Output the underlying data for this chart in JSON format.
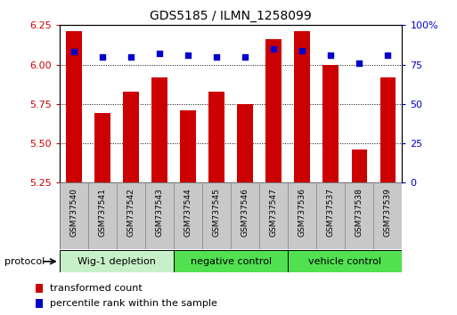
{
  "title": "GDS5185 / ILMN_1258099",
  "samples": [
    "GSM737540",
    "GSM737541",
    "GSM737542",
    "GSM737543",
    "GSM737544",
    "GSM737545",
    "GSM737546",
    "GSM737547",
    "GSM737536",
    "GSM737537",
    "GSM737538",
    "GSM737539"
  ],
  "bar_values": [
    6.21,
    5.69,
    5.83,
    5.92,
    5.71,
    5.83,
    5.75,
    6.16,
    6.21,
    6.0,
    5.46,
    5.92
  ],
  "dot_values": [
    83,
    80,
    80,
    82,
    81,
    80,
    80,
    85,
    84,
    81,
    76,
    81
  ],
  "ylim_left": [
    5.25,
    6.25
  ],
  "ylim_right": [
    0,
    100
  ],
  "yticks_left": [
    5.25,
    5.5,
    5.75,
    6.0,
    6.25
  ],
  "yticks_right": [
    0,
    25,
    50,
    75,
    100
  ],
  "ytick_labels_right": [
    "0",
    "25",
    "50",
    "75",
    "100%"
  ],
  "bar_color": "#cc0000",
  "dot_color": "#0000cc",
  "bar_bottom": 5.25,
  "groups": [
    {
      "label": "Wig-1 depletion",
      "start": 0,
      "end": 3,
      "color": "#c8f0c8"
    },
    {
      "label": "negative control",
      "start": 4,
      "end": 7,
      "color": "#50e050"
    },
    {
      "label": "vehicle control",
      "start": 8,
      "end": 11,
      "color": "#50e050"
    }
  ],
  "protocol_label": "protocol",
  "legend_red": "transformed count",
  "legend_blue": "percentile rank within the sample",
  "tick_label_color_left": "#cc0000",
  "tick_label_color_right": "#0000cc",
  "sample_box_color": "#c8c8c8",
  "sample_box_edge": "#888888"
}
